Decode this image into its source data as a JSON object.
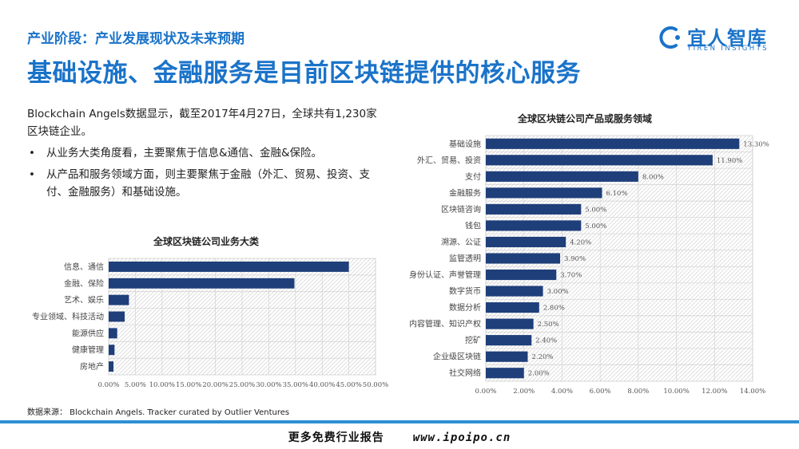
{
  "header": {
    "subtitle": "产业阶段：产业发展现状及未来预期",
    "title": "基础设施、金融服务是目前区块链提供的核心服务"
  },
  "logo": {
    "name": "宜人智库",
    "sub": "YIREN INSIGHTS",
    "icon": "yiren-logo-icon",
    "color": "#1a73c9"
  },
  "text": {
    "intro": "Blockchain Angels数据显示，截至2017年4月27日，全球共有1,230家区块链企业。",
    "bullet_marker": "•",
    "bullets": [
      "从业务大类角度看，主要聚焦于信息&通信、金融&保险。",
      "从产品和服务领域方面，则主要聚焦于金融（外汇、贸易、投资、支付、金融服务）和基础设施。"
    ]
  },
  "source": "数据来源： Blockchain Angels. Tracker curated by Outlier Ventures",
  "footer": {
    "text": "更多免费行业报告",
    "url": "www.ipoipo.cn"
  },
  "colors": {
    "accent": "#1a73c9",
    "bar": "#1f3f7a",
    "footer_line": "#2f8fd6"
  },
  "chart_data": [
    {
      "type": "bar",
      "orientation": "horizontal",
      "title": "全球区块链公司业务大类",
      "categories": [
        "信息、通信",
        "金融、保险",
        "艺术、娱乐",
        "专业领域、科技活动",
        "能源供应",
        "健康管理",
        "房地产"
      ],
      "values": [
        45.0,
        34.8,
        3.8,
        3.0,
        1.6,
        1.1,
        0.9
      ],
      "xlim": [
        0,
        50
      ],
      "xticks": [
        "0.00%",
        "5.00%",
        "10.00%",
        "15.00%",
        "20.00%",
        "25.00%",
        "30.00%",
        "35.00%",
        "40.00%",
        "45.00%",
        "50.00%"
      ],
      "data_labels": false,
      "grid": true
    },
    {
      "type": "bar",
      "orientation": "horizontal",
      "title": "全球区块链公司产品或服务领域",
      "categories": [
        "基础设施",
        "外汇、贸易、投资",
        "支付",
        "金融服务",
        "区块链咨询",
        "钱包",
        "溯源、公证",
        "监管透明",
        "身份认证、声誉管理",
        "数字货币",
        "数据分析",
        "内容管理、知识产权",
        "挖矿",
        "企业级区块链",
        "社交网络"
      ],
      "values": [
        13.3,
        11.9,
        8.0,
        6.1,
        5.0,
        5.0,
        4.2,
        3.9,
        3.7,
        3.0,
        2.8,
        2.5,
        2.4,
        2.2,
        2.0
      ],
      "labels": [
        "13.30%",
        "11.90%",
        "8.00%",
        "6.10%",
        "5.00%",
        "5.00%",
        "4.20%",
        "3.90%",
        "3.70%",
        "3.00%",
        "2.80%",
        "2.50%",
        "2.40%",
        "2.20%",
        "2.00%"
      ],
      "xlim": [
        0,
        14
      ],
      "xticks": [
        "0.00%",
        "2.00%",
        "4.00%",
        "6.00%",
        "8.00%",
        "10.00%",
        "12.00%",
        "14.00%"
      ],
      "data_labels": true,
      "grid": true
    }
  ]
}
